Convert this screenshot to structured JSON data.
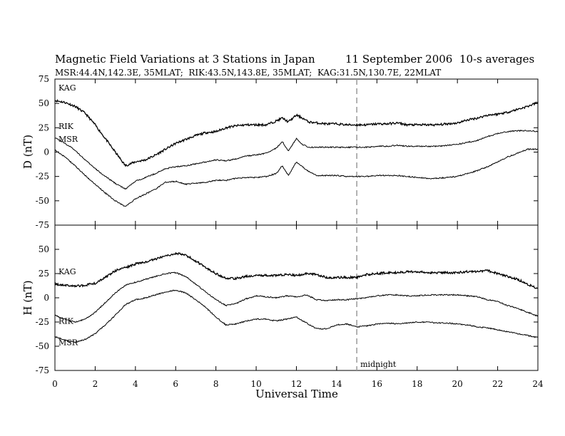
{
  "header": {
    "title": "Magnetic Field Variations at 3 Stations in Japan",
    "date": "11 September 2006",
    "averaging": "10-s averages",
    "stations_line": "MSR:44.4N,142.3E, 35MLAT;  RIK:43.5N,143.8E, 35MLAT;  KAG:31.5N,130.7E, 22MLAT"
  },
  "chart_data": [
    {
      "type": "line",
      "panel": "top",
      "ylabel": "D (nT)",
      "ylim": [
        -75,
        75
      ],
      "yticks": [
        75,
        50,
        25,
        0,
        -25,
        -50,
        -75
      ],
      "xlim": [
        0,
        24
      ],
      "series": [
        {
          "name": "KAG",
          "color": "#000000",
          "x": [
            0,
            0.5,
            1,
            1.5,
            2,
            2.5,
            3,
            3.5,
            4,
            4.5,
            5,
            5.5,
            6,
            6.5,
            7,
            7.5,
            8,
            8.5,
            9,
            9.5,
            10,
            10.5,
            11,
            11.3,
            11.6,
            12,
            12.3,
            12.6,
            13,
            13.5,
            14,
            14.5,
            15,
            15.5,
            16,
            16.5,
            17,
            17.5,
            18,
            18.5,
            19,
            19.5,
            20,
            20.5,
            21,
            21.5,
            22,
            22.5,
            23,
            23.5,
            24
          ],
          "y": [
            53,
            51,
            47,
            40,
            28,
            14,
            0,
            -14,
            -10,
            -8,
            -3,
            3,
            9,
            13,
            17,
            20,
            21,
            25,
            27,
            28,
            28,
            28,
            32,
            35,
            31,
            38,
            35,
            31,
            30,
            29,
            29,
            28,
            28,
            28,
            29,
            29,
            30,
            28,
            28,
            28,
            28,
            29,
            30,
            33,
            35,
            38,
            39,
            41,
            44,
            47,
            51
          ]
        },
        {
          "name": "RIK",
          "color": "#000000",
          "x": [
            0,
            0.5,
            1,
            1.5,
            2,
            2.5,
            3,
            3.5,
            4,
            4.5,
            5,
            5.5,
            6,
            6.5,
            7,
            7.5,
            8,
            8.5,
            9,
            9.5,
            10,
            10.5,
            11,
            11.3,
            11.6,
            12,
            12.3,
            12.6,
            13,
            13.5,
            14,
            14.5,
            15,
            15.5,
            16,
            16.5,
            17,
            17.5,
            18,
            18.5,
            19,
            19.5,
            20,
            20.5,
            21,
            21.5,
            22,
            22.5,
            23,
            23.5,
            24
          ],
          "y": [
            15,
            9,
            2,
            -8,
            -17,
            -25,
            -32,
            -38,
            -30,
            -26,
            -22,
            -17,
            -15,
            -14,
            -12,
            -10,
            -8,
            -9,
            -7,
            -4,
            -3,
            -1,
            4,
            11,
            1,
            14,
            8,
            5,
            5,
            5,
            5,
            5,
            5,
            5,
            6,
            6,
            7,
            6,
            6,
            6,
            6,
            7,
            8,
            10,
            12,
            16,
            19,
            21,
            22,
            22,
            21
          ]
        },
        {
          "name": "MSR",
          "color": "#000000",
          "x": [
            0,
            0.5,
            1,
            1.5,
            2,
            2.5,
            3,
            3.5,
            4,
            4.5,
            5,
            5.5,
            6,
            6.5,
            7,
            7.5,
            8,
            8.5,
            9,
            9.5,
            10,
            10.5,
            11,
            11.3,
            11.6,
            12,
            12.3,
            12.6,
            13,
            13.5,
            14,
            14.5,
            15,
            15.5,
            16,
            16.5,
            17,
            17.5,
            18,
            18.5,
            19,
            19.5,
            20,
            20.5,
            21,
            21.5,
            22,
            22.5,
            23,
            23.5,
            24
          ],
          "y": [
            2,
            -5,
            -14,
            -24,
            -33,
            -42,
            -50,
            -56,
            -48,
            -43,
            -38,
            -31,
            -30,
            -33,
            -32,
            -31,
            -29,
            -29,
            -27,
            -26,
            -26,
            -25,
            -22,
            -14,
            -24,
            -10,
            -15,
            -20,
            -24,
            -24,
            -24,
            -25,
            -25,
            -25,
            -24,
            -24,
            -24,
            -25,
            -26,
            -27,
            -27,
            -26,
            -25,
            -22,
            -19,
            -15,
            -10,
            -5,
            -1,
            3,
            3
          ]
        }
      ],
      "label_positions": "left"
    },
    {
      "type": "line",
      "panel": "bottom",
      "ylabel": "H (nT)",
      "xlabel": "Universal Time",
      "ylim": [
        -75,
        75
      ],
      "yticks": [
        50,
        25,
        0,
        -25,
        -50,
        -75
      ],
      "xlim": [
        0,
        24
      ],
      "xticks": [
        0,
        2,
        4,
        6,
        8,
        10,
        12,
        14,
        16,
        18,
        20,
        22,
        24
      ],
      "marker": {
        "x": 15,
        "label": "midnight",
        "style": "dashed",
        "color": "#999999"
      },
      "series": [
        {
          "name": "KAG",
          "color": "#000000",
          "x": [
            0,
            0.5,
            1,
            1.5,
            2,
            2.5,
            3,
            3.5,
            4,
            4.5,
            5,
            5.5,
            6,
            6.5,
            7,
            7.5,
            8,
            8.5,
            9,
            9.5,
            10,
            10.5,
            11,
            11.5,
            12,
            12.5,
            13,
            13.5,
            14,
            14.5,
            15,
            15.5,
            16,
            16.5,
            17,
            17.5,
            18,
            18.5,
            19,
            19.5,
            20,
            20.5,
            21,
            21.5,
            22,
            22.5,
            23,
            23.5,
            24
          ],
          "y": [
            14,
            13,
            12,
            13,
            15,
            21,
            28,
            31,
            35,
            37,
            40,
            43,
            46,
            44,
            38,
            31,
            25,
            20,
            20,
            22,
            23,
            23,
            23,
            24,
            23,
            25,
            24,
            21,
            21,
            21,
            21,
            24,
            25,
            26,
            26,
            27,
            27,
            26,
            26,
            26,
            26,
            27,
            27,
            28,
            25,
            22,
            19,
            14,
            9
          ]
        },
        {
          "name": "RIK",
          "color": "#000000",
          "x": [
            0,
            0.5,
            1,
            1.5,
            2,
            2.5,
            3,
            3.5,
            4,
            4.5,
            5,
            5.5,
            6,
            6.5,
            7,
            7.5,
            8,
            8.5,
            9,
            9.5,
            10,
            10.5,
            11,
            11.5,
            12,
            12.5,
            13,
            13.5,
            14,
            14.5,
            15,
            15.5,
            16,
            16.5,
            17,
            17.5,
            18,
            18.5,
            19,
            19.5,
            20,
            20.5,
            21,
            21.5,
            22,
            22.5,
            23,
            23.5,
            24
          ],
          "y": [
            -18,
            -22,
            -25,
            -22,
            -15,
            -5,
            5,
            13,
            16,
            19,
            22,
            25,
            26,
            22,
            14,
            6,
            -2,
            -8,
            -6,
            -1,
            2,
            1,
            0,
            2,
            1,
            3,
            -2,
            -3,
            -2,
            -2,
            -1,
            0,
            2,
            3,
            3,
            2,
            2,
            3,
            3,
            3,
            3,
            2,
            1,
            -2,
            -4,
            -8,
            -11,
            -15,
            -19
          ]
        },
        {
          "name": "MSR",
          "color": "#000000",
          "x": [
            0,
            0.5,
            1,
            1.5,
            2,
            2.5,
            3,
            3.5,
            4,
            4.5,
            5,
            5.5,
            6,
            6.5,
            7,
            7.5,
            8,
            8.5,
            9,
            9.5,
            10,
            10.5,
            11,
            11.5,
            12,
            12.5,
            13,
            13.5,
            14,
            14.5,
            15,
            15.5,
            16,
            16.5,
            17,
            17.5,
            18,
            18.5,
            19,
            19.5,
            20,
            20.5,
            21,
            21.5,
            22,
            22.5,
            23,
            23.5,
            24
          ],
          "y": [
            -40,
            -44,
            -46,
            -43,
            -37,
            -28,
            -18,
            -7,
            -2,
            0,
            3,
            6,
            8,
            5,
            -2,
            -10,
            -20,
            -28,
            -27,
            -24,
            -22,
            -22,
            -24,
            -22,
            -20,
            -26,
            -32,
            -32,
            -28,
            -27,
            -30,
            -29,
            -27,
            -26,
            -27,
            -26,
            -25,
            -25,
            -26,
            -26,
            -27,
            -28,
            -30,
            -31,
            -33,
            -35,
            -37,
            -39,
            -41
          ]
        }
      ],
      "label_positions": "left"
    }
  ]
}
